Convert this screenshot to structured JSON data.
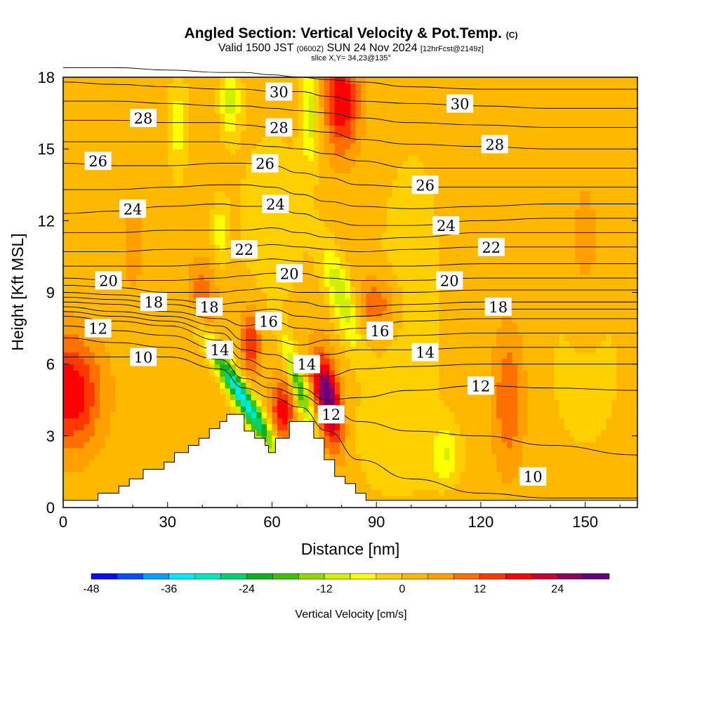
{
  "title": {
    "main": "Angled Section: Vertical Velocity & Pot.Temp.",
    "main_suffix": "(C)",
    "valid_a": "Valid 1500 JST",
    "valid_b": "(0600Z)",
    "valid_c": "SUN 24 Nov 2024",
    "valid_d": "[12hrFcst@2149z]",
    "slice": "slice X,Y= 34,23@135°"
  },
  "chart_data": {
    "type": "heatmap",
    "title": "Angled Section: Vertical Velocity & Pot.Temp. (C)",
    "xlabel": "Distance [nm]",
    "ylabel": "Height [Kft MSL]",
    "xlim": [
      0,
      165
    ],
    "ylim": [
      0,
      18
    ],
    "xticks": [
      0,
      30,
      60,
      90,
      120,
      150
    ],
    "yticks": [
      0,
      3,
      6,
      9,
      12,
      15,
      18
    ],
    "colorbar": {
      "label": "Vertical Velocity [cm/s]",
      "min": -48,
      "max": 32,
      "step": 4,
      "tick_labels": [
        "-48",
        "-36",
        "-24",
        "-12",
        "0",
        "12",
        "24"
      ],
      "colors": [
        "#0a0aff",
        "#0050ff",
        "#00a0ff",
        "#00e8ff",
        "#00e8c0",
        "#00d070",
        "#10b020",
        "#40c000",
        "#90d800",
        "#d0f000",
        "#ffff00",
        "#ffd000",
        "#ffb800",
        "#ffa000",
        "#ff7000",
        "#ff3800",
        "#ff0000",
        "#c80030",
        "#900060",
        "#600080"
      ]
    },
    "velocity_base": 2,
    "velocity_features": [
      {
        "x": 2,
        "z": 4.8,
        "sx": 6,
        "sz": 1.6,
        "amp": 18,
        "tilt": 0
      },
      {
        "x": 52,
        "z": 4.5,
        "sx": 2.2,
        "sz": 1.6,
        "amp": -36,
        "tilt": -4
      },
      {
        "x": 63,
        "z": 4,
        "sx": 2.5,
        "sz": 1,
        "amp": 16,
        "tilt": 0
      },
      {
        "x": 68,
        "z": 5,
        "sx": 1.6,
        "sz": 1.3,
        "amp": -22,
        "tilt": -2
      },
      {
        "x": 76,
        "z": 4.5,
        "sx": 2.5,
        "sz": 1.3,
        "amp": 30,
        "tilt": -1
      },
      {
        "x": 80,
        "z": 17,
        "sx": 3.5,
        "sz": 1.5,
        "amp": 18,
        "tilt": 0
      },
      {
        "x": 71,
        "z": 16.5,
        "sx": 1.8,
        "sz": 1.5,
        "amp": -12,
        "tilt": 0
      },
      {
        "x": 80,
        "z": 8.8,
        "sx": 2.5,
        "sz": 1.5,
        "amp": -14,
        "tilt": -2
      },
      {
        "x": 48,
        "z": 17,
        "sx": 2,
        "sz": 1,
        "amp": -12,
        "tilt": 0
      },
      {
        "x": 33,
        "z": 16,
        "sx": 2,
        "sz": 1.5,
        "amp": -8,
        "tilt": 0
      },
      {
        "x": 45,
        "z": 11.5,
        "sx": 1.5,
        "sz": 1,
        "amp": -8,
        "tilt": 0
      },
      {
        "x": 54,
        "z": 7,
        "sx": 2,
        "sz": 1,
        "amp": 14,
        "tilt": 0
      },
      {
        "x": 90,
        "z": 8.5,
        "sx": 4,
        "sz": 0.8,
        "amp": 10,
        "tilt": 0
      },
      {
        "x": 110,
        "z": 2.2,
        "sx": 3,
        "sz": 0.8,
        "amp": -9,
        "tilt": 0
      },
      {
        "x": 128,
        "z": 4.5,
        "sx": 3,
        "sz": 2,
        "amp": 10,
        "tilt": 0
      },
      {
        "x": 40,
        "z": 9,
        "sx": 3,
        "sz": 1,
        "amp": 8,
        "tilt": 0
      },
      {
        "x": 100,
        "z": 10,
        "sx": 7,
        "sz": 4,
        "amp": -4,
        "tilt": 0
      },
      {
        "x": 150,
        "z": 6,
        "sx": 8,
        "sz": 3,
        "amp": -4,
        "tilt": 0
      },
      {
        "x": 60,
        "z": 12,
        "sx": 8,
        "sz": 3,
        "amp": -4,
        "tilt": 0
      },
      {
        "x": 95,
        "z": 3,
        "sx": 10,
        "sz": 2,
        "amp": -4,
        "tilt": 0
      },
      {
        "x": 150,
        "z": 10,
        "sx": 4,
        "sz": 3,
        "amp": 4,
        "tilt": 0
      },
      {
        "x": 20,
        "z": 11,
        "sx": 3,
        "sz": 2,
        "amp": 3,
        "tilt": 0
      }
    ],
    "theta_x": [
      0,
      15,
      30,
      45,
      52,
      60,
      68,
      76,
      85,
      100,
      120,
      140,
      165
    ],
    "theta_contours": [
      {
        "level": 10,
        "z": [
          6.3,
          6.3,
          6.3,
          5.8,
          5.0,
          4.6,
          4.2,
          3.2,
          2.0,
          1.2,
          0.6,
          0.4,
          0.4
        ]
      },
      {
        "level": 11,
        "z": [
          7.1,
          6.9,
          6.7,
          6.2,
          5.4,
          5.0,
          4.7,
          4.2,
          3.6,
          3.2,
          3.0,
          2.6,
          2.2
        ]
      },
      {
        "level": 12,
        "z": [
          7.6,
          7.4,
          7.2,
          6.6,
          5.8,
          5.4,
          5.0,
          4.5,
          4.6,
          4.9,
          5.1,
          5.0,
          4.9
        ]
      },
      {
        "level": 13,
        "z": [
          8.0,
          7.8,
          7.6,
          7.0,
          6.2,
          5.8,
          5.5,
          5.5,
          5.8,
          5.9,
          6.0,
          6.0,
          6.0
        ]
      },
      {
        "level": 14,
        "z": [
          8.2,
          8.0,
          7.8,
          7.3,
          6.6,
          6.4,
          6.0,
          6.4,
          6.6,
          6.6,
          6.7,
          6.7,
          6.7
        ]
      },
      {
        "level": 15,
        "z": [
          8.4,
          8.2,
          8.0,
          7.6,
          7.0,
          7.0,
          6.8,
          7.0,
          7.0,
          7.2,
          7.3,
          7.3,
          7.3
        ]
      },
      {
        "level": 16,
        "z": [
          8.6,
          8.5,
          8.2,
          7.9,
          7.6,
          7.8,
          7.5,
          7.4,
          7.5,
          7.8,
          7.9,
          7.9,
          7.9
        ]
      },
      {
        "level": 17,
        "z": [
          8.8,
          8.7,
          8.5,
          8.2,
          8.2,
          8.3,
          8.0,
          7.9,
          8.0,
          8.2,
          8.3,
          8.3,
          8.3
        ]
      },
      {
        "level": 18,
        "z": [
          9.0,
          8.9,
          8.7,
          8.5,
          8.6,
          8.7,
          8.6,
          8.4,
          8.4,
          8.5,
          8.6,
          8.6,
          8.6
        ]
      },
      {
        "level": 19,
        "z": [
          9.3,
          9.2,
          9.0,
          9.0,
          9.1,
          9.2,
          9.0,
          9.0,
          9.0,
          9.0,
          9.1,
          9.1,
          9.1
        ]
      },
      {
        "level": 20,
        "z": [
          9.6,
          9.5,
          9.5,
          9.6,
          9.7,
          9.8,
          9.8,
          9.6,
          9.5,
          9.5,
          9.6,
          9.6,
          9.6
        ]
      },
      {
        "level": 21,
        "z": [
          10.1,
          10.1,
          10.1,
          10.2,
          10.3,
          10.4,
          10.3,
          10.2,
          10.1,
          10.1,
          10.2,
          10.2,
          10.2
        ]
      },
      {
        "level": 22,
        "z": [
          10.7,
          10.7,
          10.8,
          10.8,
          10.9,
          11.0,
          10.9,
          10.8,
          10.7,
          10.8,
          10.9,
          10.9,
          10.9
        ]
      },
      {
        "level": 23,
        "z": [
          11.5,
          11.5,
          11.6,
          11.6,
          11.6,
          11.7,
          11.5,
          11.3,
          11.2,
          11.3,
          11.5,
          11.5,
          11.5
        ]
      },
      {
        "level": 24,
        "z": [
          12.3,
          12.4,
          12.6,
          12.7,
          12.6,
          12.6,
          12.3,
          12.0,
          11.8,
          11.8,
          12.0,
          12.1,
          12.1
        ]
      },
      {
        "level": 25,
        "z": [
          13.3,
          13.3,
          13.4,
          13.5,
          13.5,
          13.4,
          13.1,
          12.8,
          12.6,
          12.5,
          12.6,
          12.7,
          12.7
        ]
      },
      {
        "level": 26,
        "z": [
          14.4,
          14.3,
          14.3,
          14.4,
          14.4,
          14.3,
          14.0,
          13.8,
          13.5,
          13.4,
          13.4,
          13.4,
          13.4
        ]
      },
      {
        "level": 27,
        "z": [
          15.3,
          15.3,
          15.3,
          15.3,
          15.2,
          15.1,
          15.0,
          14.8,
          14.5,
          14.2,
          14.2,
          14.2,
          14.2
        ]
      },
      {
        "level": 28,
        "z": [
          16.2,
          16.2,
          16.1,
          16.1,
          16.0,
          15.9,
          15.8,
          15.7,
          15.4,
          15.2,
          15.1,
          15.0,
          15.0
        ]
      },
      {
        "level": 29,
        "z": [
          17.0,
          17.0,
          16.9,
          16.8,
          16.8,
          16.7,
          16.6,
          16.5,
          16.3,
          16.1,
          16.0,
          15.9,
          15.9
        ]
      },
      {
        "level": 30,
        "z": [
          17.8,
          17.7,
          17.6,
          17.5,
          17.5,
          17.4,
          17.4,
          17.2,
          17.0,
          16.9,
          16.8,
          16.7,
          16.7
        ]
      },
      {
        "level": 31,
        "z": [
          18.4,
          18.4,
          18.3,
          18.2,
          18.2,
          18.1,
          18.0,
          17.9,
          17.8,
          17.6,
          17.5,
          17.5,
          17.5
        ]
      }
    ],
    "contour_labels": [
      {
        "text": "10",
        "x": 23,
        "z": 6.3
      },
      {
        "text": "10",
        "x": 135,
        "z": 1.3
      },
      {
        "text": "12",
        "x": 10,
        "z": 7.5
      },
      {
        "text": "12",
        "x": 77,
        "z": 3.9
      },
      {
        "text": "12",
        "x": 120,
        "z": 5.1
      },
      {
        "text": "14",
        "x": 45,
        "z": 6.6
      },
      {
        "text": "14",
        "x": 70,
        "z": 6.0
      },
      {
        "text": "14",
        "x": 104,
        "z": 6.5
      },
      {
        "text": "16",
        "x": 59,
        "z": 7.8
      },
      {
        "text": "16",
        "x": 91,
        "z": 7.4
      },
      {
        "text": "18",
        "x": 26,
        "z": 8.6
      },
      {
        "text": "18",
        "x": 42,
        "z": 8.4
      },
      {
        "text": "18",
        "x": 125,
        "z": 8.4
      },
      {
        "text": "20",
        "x": 13,
        "z": 9.5
      },
      {
        "text": "20",
        "x": 65,
        "z": 9.8
      },
      {
        "text": "20",
        "x": 111,
        "z": 9.5
      },
      {
        "text": "22",
        "x": 52,
        "z": 10.8
      },
      {
        "text": "22",
        "x": 123,
        "z": 10.9
      },
      {
        "text": "24",
        "x": 20,
        "z": 12.5
      },
      {
        "text": "24",
        "x": 61,
        "z": 12.7
      },
      {
        "text": "24",
        "x": 110,
        "z": 11.8
      },
      {
        "text": "26",
        "x": 10,
        "z": 14.5
      },
      {
        "text": "26",
        "x": 58,
        "z": 14.4
      },
      {
        "text": "26",
        "x": 104,
        "z": 13.5
      },
      {
        "text": "28",
        "x": 23,
        "z": 16.3
      },
      {
        "text": "28",
        "x": 62,
        "z": 15.9
      },
      {
        "text": "28",
        "x": 124,
        "z": 15.2
      },
      {
        "text": "30",
        "x": 62,
        "z": 17.4
      },
      {
        "text": "30",
        "x": 114,
        "z": 16.9
      }
    ],
    "terrain": [
      [
        0,
        0.3
      ],
      [
        10,
        0.3
      ],
      [
        10,
        0.6
      ],
      [
        16,
        0.6
      ],
      [
        16,
        0.9
      ],
      [
        19,
        0.9
      ],
      [
        19,
        1.2
      ],
      [
        23,
        1.2
      ],
      [
        23,
        1.6
      ],
      [
        29,
        1.6
      ],
      [
        29,
        1.9
      ],
      [
        32,
        1.9
      ],
      [
        32,
        2.3
      ],
      [
        36,
        2.3
      ],
      [
        36,
        2.6
      ],
      [
        39,
        2.6
      ],
      [
        39,
        2.9
      ],
      [
        42,
        2.9
      ],
      [
        42,
        3.3
      ],
      [
        45,
        3.3
      ],
      [
        45,
        3.6
      ],
      [
        47,
        3.6
      ],
      [
        47,
        3.9
      ],
      [
        52,
        3.9
      ],
      [
        52,
        3.2
      ],
      [
        55,
        3.2
      ],
      [
        55,
        2.9
      ],
      [
        58,
        2.9
      ],
      [
        58,
        2.6
      ],
      [
        59,
        2.6
      ],
      [
        59,
        2.3
      ],
      [
        61,
        2.3
      ],
      [
        61,
        2.9
      ],
      [
        65,
        2.9
      ],
      [
        65,
        3.6
      ],
      [
        72,
        3.6
      ],
      [
        72,
        2.9
      ],
      [
        75,
        2.9
      ],
      [
        75,
        2.0
      ],
      [
        78,
        2.0
      ],
      [
        78,
        1.3
      ],
      [
        81,
        1.3
      ],
      [
        81,
        1.0
      ],
      [
        84,
        1.0
      ],
      [
        84,
        0.6
      ],
      [
        87,
        0.6
      ],
      [
        87,
        0.3
      ],
      [
        165,
        0.3
      ],
      [
        165,
        0
      ],
      [
        0,
        0
      ]
    ]
  }
}
